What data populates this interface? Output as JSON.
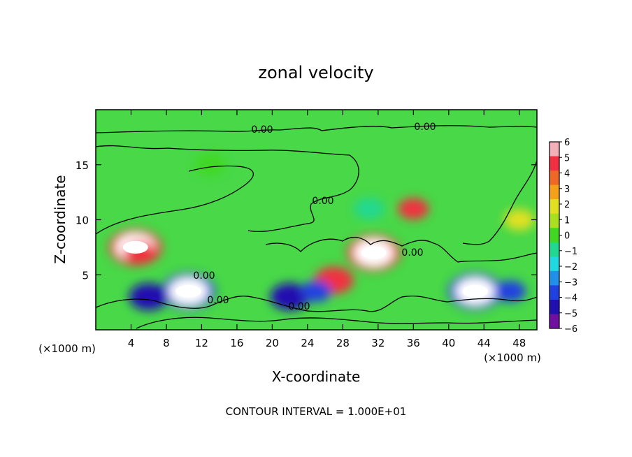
{
  "chart_data": {
    "type": "heatmap",
    "title": "zonal velocity",
    "xlabel": "X-coordinate",
    "ylabel": "Z-coordinate",
    "x_unit": "(×1000 m)",
    "x_unit_right": "(×1000 m)",
    "xlim": [
      0,
      50
    ],
    "ylim": [
      0,
      20
    ],
    "x_ticks": [
      4,
      8,
      12,
      16,
      20,
      24,
      28,
      32,
      36,
      40,
      44,
      48
    ],
    "y_ticks": [
      5,
      10,
      15
    ],
    "footer": "CONTOUR INTERVAL = 1.000E+01",
    "contour_labels": [
      "0.00",
      "0.00",
      "0.00",
      "0.00",
      "0.00",
      "0.00",
      "0.00"
    ],
    "colorbar": {
      "ticks": [
        "6",
        "5",
        "4",
        "3",
        "2",
        "1",
        "0",
        "−1",
        "−2",
        "−3",
        "−4",
        "−5",
        "−6"
      ],
      "colors": [
        "#f4b0b8",
        "#f03040",
        "#f06828",
        "#f4a018",
        "#e0e020",
        "#a8e020",
        "#40d820",
        "#20d890",
        "#20d8e0",
        "#2090e8",
        "#2040e0",
        "#2010b0",
        "#7010a0"
      ]
    },
    "background": "#48d848",
    "features": [
      {
        "x": 4.5,
        "z": 7.5,
        "value": 6
      },
      {
        "x": 5,
        "z": 7,
        "value": 4.5
      },
      {
        "x": 36,
        "z": 11,
        "value": 4.5
      },
      {
        "x": 31.5,
        "z": 7,
        "value": 6
      },
      {
        "x": 27,
        "z": 4.5,
        "value": 5
      },
      {
        "x": 43,
        "z": 3.5,
        "value": -6
      },
      {
        "x": 10.5,
        "z": 3.5,
        "value": -6
      },
      {
        "x": 6,
        "z": 3,
        "value": -5
      },
      {
        "x": 22,
        "z": 3,
        "value": -5
      },
      {
        "x": 25,
        "z": 3.5,
        "value": -4
      },
      {
        "x": 47,
        "z": 3.5,
        "value": -4
      },
      {
        "x": 31,
        "z": 11,
        "value": -1
      },
      {
        "x": 13,
        "z": 15,
        "value": -0.5
      },
      {
        "x": 48,
        "z": 10,
        "value": 1.5
      }
    ]
  }
}
